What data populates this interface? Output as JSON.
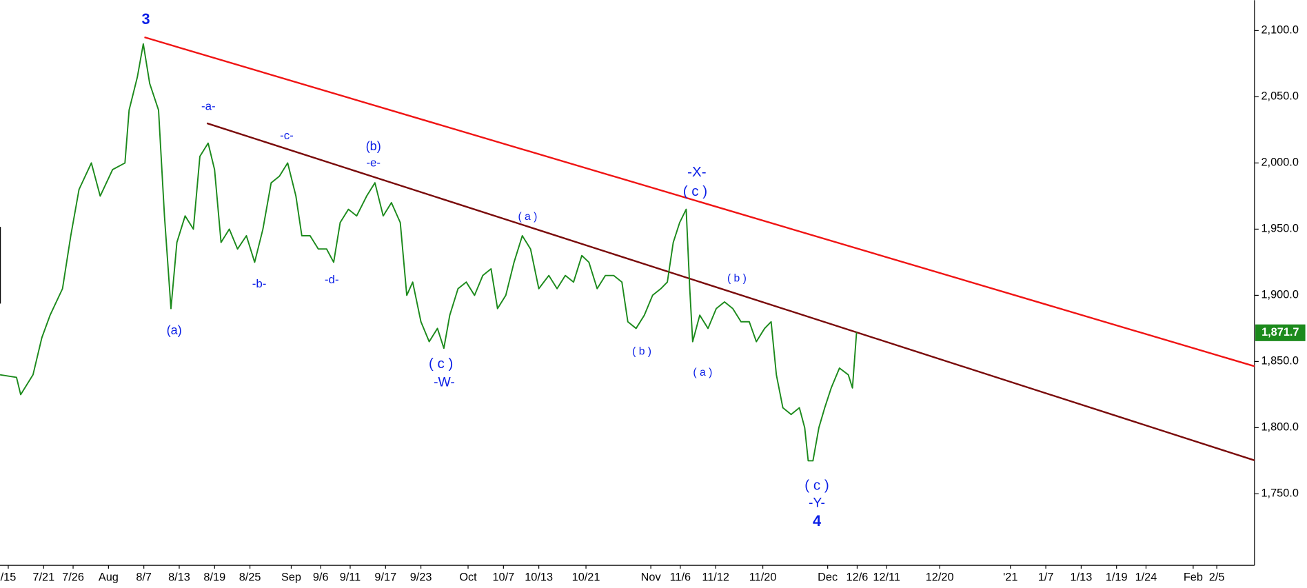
{
  "chart_data": {
    "type": "line",
    "series": [
      {
        "color": "#1c8a1c",
        "x": [
          -1.4,
          1.4,
          2.1,
          4.2,
          5.7,
          7.1,
          9.2,
          10.6,
          12,
          14.1,
          15.6,
          17.7,
          19.8,
          20.5,
          21.9,
          22.9,
          24,
          25.5,
          26.5,
          27.6,
          28.6,
          30,
          31.4,
          32.5,
          33.9,
          35,
          36.1,
          37.5,
          38.9,
          40.4,
          41.8,
          43.2,
          44.6,
          46,
          47.4,
          48.8,
          49.8,
          51.2,
          52.6,
          54,
          55.2,
          56.3,
          57.7,
          59.1,
          60.8,
          62.2,
          63.6,
          65,
          66.5,
          67.6,
          68.6,
          70,
          71.4,
          72.8,
          73.9,
          74.9,
          76.3,
          77.7,
          79.1,
          80.5,
          81.9,
          83,
          84.4,
          85.8,
          87.2,
          88.6,
          90,
          91.7,
          93.1,
          94.5,
          95.9,
          97.3,
          98.5,
          99.9,
          101.3,
          102.7,
          104.1,
          105.1,
          106.5,
          107.9,
          109.3,
          110.7,
          111.8,
          112.8,
          113.9,
          115,
          115.6,
          116.1,
          117.3,
          118.7,
          120.1,
          121.5,
          122.9,
          124.3,
          125.7,
          126.9,
          128.3,
          129.4,
          130.3,
          131.4,
          132.8,
          134.2,
          135.1,
          135.7,
          136.5,
          137.5,
          138.5,
          139.6,
          141,
          142.5,
          143.2,
          143.9
        ],
        "values": [
          1840,
          1838,
          1825,
          1840,
          1868,
          1885,
          1905,
          1945,
          1980,
          2000,
          1975,
          1995,
          2000,
          2040,
          2065,
          2090,
          2060,
          2040,
          1960,
          1890,
          1940,
          1960,
          1950,
          2005,
          2015,
          1995,
          1940,
          1950,
          1935,
          1945,
          1925,
          1950,
          1985,
          1990,
          2000,
          1975,
          1945,
          1945,
          1935,
          1935,
          1925,
          1955,
          1965,
          1960,
          1975,
          1985,
          1960,
          1970,
          1955,
          1900,
          1910,
          1880,
          1865,
          1875,
          1860,
          1885,
          1905,
          1910,
          1900,
          1915,
          1920,
          1890,
          1900,
          1925,
          1945,
          1935,
          1905,
          1915,
          1905,
          1915,
          1910,
          1930,
          1925,
          1905,
          1915,
          1915,
          1910,
          1880,
          1875,
          1885,
          1900,
          1905,
          1910,
          1940,
          1955,
          1965,
          1905,
          1865,
          1885,
          1875,
          1890,
          1895,
          1890,
          1880,
          1880,
          1865,
          1875,
          1880,
          1840,
          1815,
          1810,
          1815,
          1800,
          1775,
          1775,
          1800,
          1815,
          1830,
          1845,
          1840,
          1830,
          1872
        ]
      }
    ],
    "trendlines": [
      {
        "color": "#f01414",
        "x": [
          23.1,
          211.4
        ],
        "y": [
          2095,
          1846.4
        ]
      },
      {
        "color": "#7a0a0a",
        "x": [
          33.7,
          211.4
        ],
        "y": [
          2030,
          1775.3
        ]
      }
    ],
    "last_price": {
      "value": 1871.7,
      "label": "1,871.7"
    },
    "annotations": [
      "3",
      "-a-",
      "(a)",
      "-b-",
      "-c-",
      "-d-",
      "(b)",
      "-e-",
      "( c )",
      "-W-",
      "( a )",
      "( b )",
      "-X-",
      "( c )",
      "( a )",
      "( b )",
      "( c )",
      "-Y-",
      "4"
    ],
    "xlim": [
      -1.4,
      211.4
    ],
    "xticks": [
      {
        "value": 0,
        "label": "/15"
      },
      {
        "value": 6,
        "label": "7/21"
      },
      {
        "value": 11,
        "label": "7/26"
      },
      {
        "value": 17,
        "label": "Aug"
      },
      {
        "value": 23,
        "label": "8/7"
      },
      {
        "value": 29,
        "label": "8/13"
      },
      {
        "value": 35,
        "label": "8/19"
      },
      {
        "value": 41,
        "label": "8/25"
      },
      {
        "value": 48,
        "label": "Sep"
      },
      {
        "value": 53,
        "label": "9/6"
      },
      {
        "value": 58,
        "label": "9/11"
      },
      {
        "value": 64,
        "label": "9/17"
      },
      {
        "value": 70,
        "label": "9/23"
      },
      {
        "value": 78,
        "label": "Oct"
      },
      {
        "value": 84,
        "label": "10/7"
      },
      {
        "value": 90,
        "label": "10/13"
      },
      {
        "value": 98,
        "label": "10/21"
      },
      {
        "value": 109,
        "label": "Nov"
      },
      {
        "value": 114,
        "label": "11/6"
      },
      {
        "value": 120,
        "label": "11/12"
      },
      {
        "value": 128,
        "label": "11/20"
      },
      {
        "value": 139,
        "label": "Dec"
      },
      {
        "value": 144,
        "label": "12/6"
      },
      {
        "value": 149,
        "label": "12/11"
      },
      {
        "value": 158,
        "label": "12/20"
      },
      {
        "value": 170,
        "label": "'21"
      },
      {
        "value": 176,
        "label": "1/7"
      },
      {
        "value": 182,
        "label": "1/13"
      },
      {
        "value": 188,
        "label": "1/19"
      },
      {
        "value": 193,
        "label": "1/24"
      },
      {
        "value": 201,
        "label": "Feb"
      },
      {
        "value": 205,
        "label": "2/5"
      }
    ],
    "ylim": [
      1696,
      2123
    ],
    "yticks": [
      {
        "value": 1750,
        "label": "1,750.0"
      },
      {
        "value": 1800,
        "label": "1,800.0"
      },
      {
        "value": 1850,
        "label": "1,850.0"
      },
      {
        "value": 1900,
        "label": "1,900.0"
      },
      {
        "value": 1950,
        "label": "1,950.0"
      },
      {
        "value": 2000,
        "label": "2,000.0"
      },
      {
        "value": 2050,
        "label": "2,050.0"
      },
      {
        "value": 2100,
        "label": "2,100.0"
      }
    ]
  }
}
